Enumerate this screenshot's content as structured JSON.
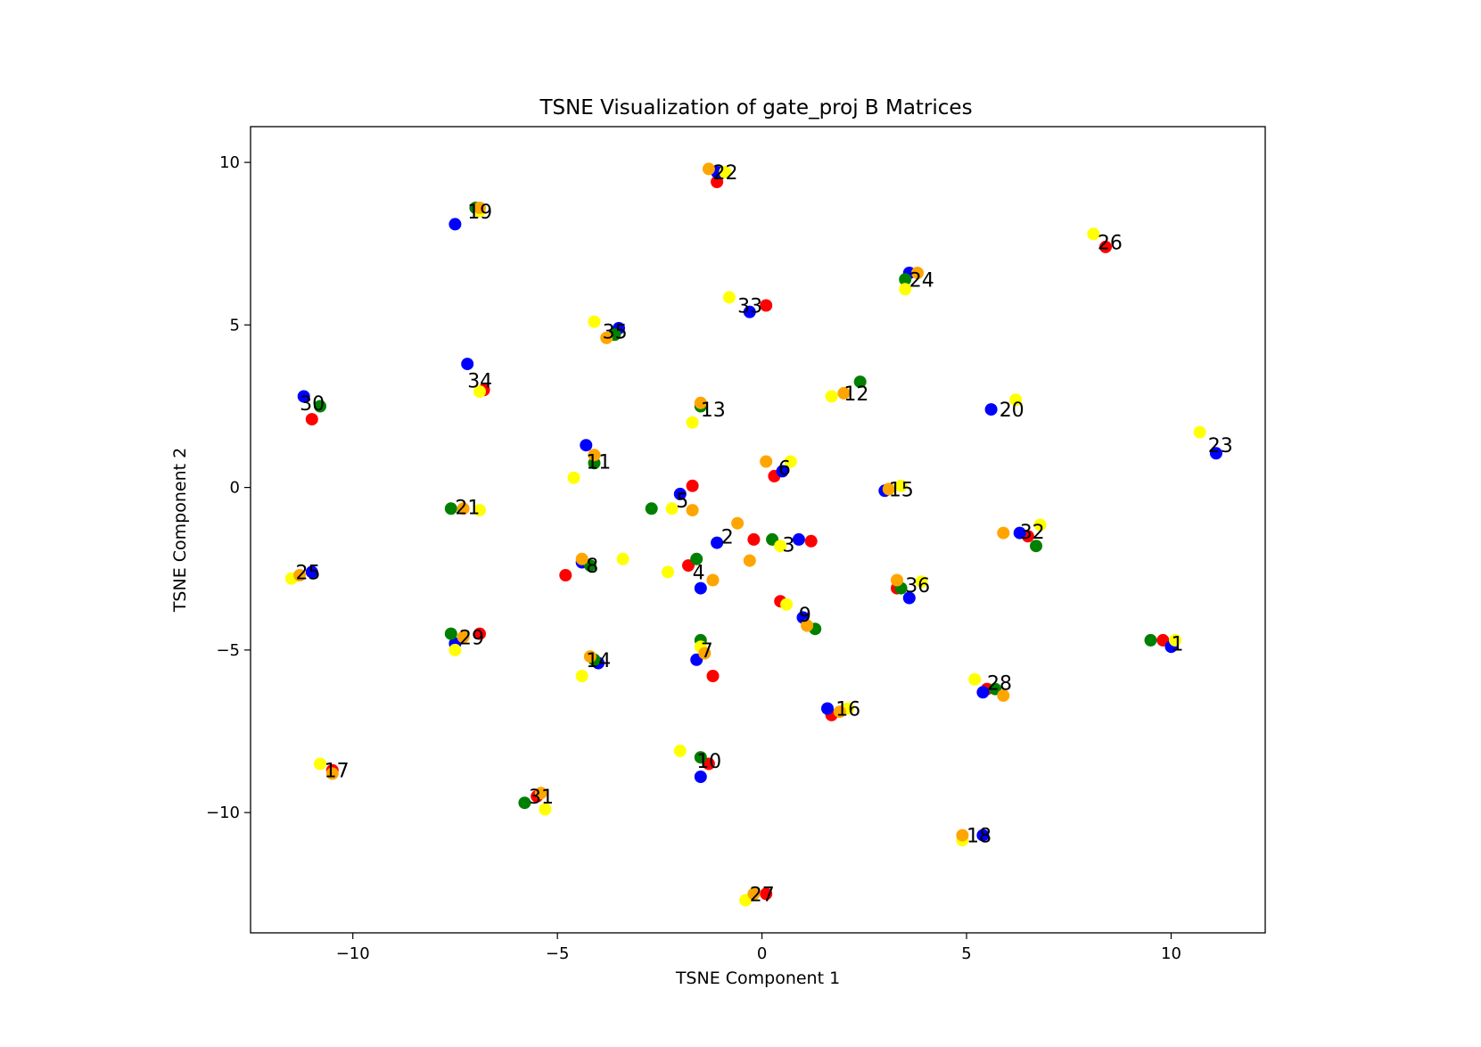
{
  "chart_data": {
    "type": "scatter",
    "title": "TSNE Visualization of gate_proj B Matrices",
    "xlabel": "TSNE Component 1",
    "ylabel": "TSNE Component 2",
    "xlim": [
      -12.5,
      12.3
    ],
    "ylim": [
      -13.7,
      11.1
    ],
    "xticks": [
      -10,
      -5,
      0,
      5,
      10
    ],
    "yticks": [
      10,
      5,
      0,
      -5,
      -10
    ],
    "grid": false,
    "legend": "none",
    "colors": {
      "red": "#ff0000",
      "blue": "#0000ff",
      "green": "#008000",
      "yellow": "#ffff00",
      "orange": "#ffa500"
    },
    "series": [
      {
        "color": "red",
        "points": [
          [
            -1.1,
            9.4
          ],
          [
            -6.8,
            3.0
          ],
          [
            -11.0,
            2.1
          ],
          [
            8.4,
            7.4
          ],
          [
            0.1,
            5.6
          ],
          [
            -0.2,
            -1.6
          ],
          [
            -1.8,
            -2.4
          ],
          [
            -4.8,
            -2.7
          ],
          [
            -1.7,
            0.05
          ],
          [
            1.2,
            -1.65
          ],
          [
            0.3,
            0.35
          ],
          [
            6.5,
            -1.5
          ],
          [
            9.8,
            -4.7
          ],
          [
            -6.9,
            -4.5
          ],
          [
            -1.2,
            -5.8
          ],
          [
            0.45,
            -3.5
          ],
          [
            -1.3,
            -8.5
          ],
          [
            1.7,
            -7.0
          ],
          [
            -10.5,
            -8.7
          ],
          [
            -5.5,
            -9.5
          ],
          [
            0.1,
            -12.5
          ],
          [
            3.3,
            -3.1
          ],
          [
            5.5,
            -6.2
          ]
        ]
      },
      {
        "color": "blue",
        "points": [
          [
            -7.5,
            8.1
          ],
          [
            -1.1,
            9.7
          ],
          [
            -7.2,
            3.8
          ],
          [
            -11.2,
            2.8
          ],
          [
            3.6,
            6.6
          ],
          [
            -0.3,
            5.4
          ],
          [
            -3.5,
            4.9
          ],
          [
            -4.3,
            1.3
          ],
          [
            -2.0,
            -0.2
          ],
          [
            -1.5,
            -3.1
          ],
          [
            -1.6,
            -5.3
          ],
          [
            0.9,
            -1.6
          ],
          [
            -1.1,
            -1.7
          ],
          [
            6.3,
            -1.4
          ],
          [
            -4.4,
            -2.3
          ],
          [
            -11.0,
            -2.6
          ],
          [
            -7.5,
            -4.8
          ],
          [
            1.0,
            -4.0
          ],
          [
            3.6,
            -3.4
          ],
          [
            5.4,
            -6.3
          ],
          [
            5.4,
            -10.7
          ],
          [
            -1.5,
            -8.9
          ],
          [
            -4.0,
            -5.4
          ],
          [
            11.1,
            1.05
          ],
          [
            10.0,
            -4.9
          ],
          [
            5.6,
            2.4
          ],
          [
            0.5,
            0.5
          ],
          [
            3.0,
            -0.1
          ],
          [
            1.6,
            -6.8
          ]
        ]
      },
      {
        "color": "green",
        "points": [
          [
            -7.0,
            8.6
          ],
          [
            3.5,
            6.4
          ],
          [
            -3.6,
            4.7
          ],
          [
            -10.8,
            2.5
          ],
          [
            -1.5,
            2.5
          ],
          [
            2.4,
            3.25
          ],
          [
            -4.1,
            0.75
          ],
          [
            -7.6,
            -0.65
          ],
          [
            -2.7,
            -0.65
          ],
          [
            0.25,
            -1.6
          ],
          [
            -1.6,
            -2.2
          ],
          [
            -4.2,
            -2.4
          ],
          [
            6.7,
            -1.8
          ],
          [
            -7.6,
            -4.5
          ],
          [
            -1.5,
            -4.7
          ],
          [
            1.3,
            -4.35
          ],
          [
            3.4,
            -3.1
          ],
          [
            5.7,
            -6.2
          ],
          [
            9.5,
            -4.7
          ],
          [
            -1.5,
            -8.3
          ],
          [
            -5.8,
            -9.7
          ],
          [
            -4.1,
            -5.3
          ]
        ]
      },
      {
        "color": "yellow",
        "points": [
          [
            -6.9,
            8.5
          ],
          [
            -0.9,
            9.7
          ],
          [
            -0.8,
            5.85
          ],
          [
            -4.1,
            5.1
          ],
          [
            3.5,
            6.1
          ],
          [
            -6.9,
            2.95
          ],
          [
            -1.7,
            2.0
          ],
          [
            1.7,
            2.8
          ],
          [
            6.2,
            2.7
          ],
          [
            10.7,
            1.7
          ],
          [
            0.7,
            0.8
          ],
          [
            -4.6,
            0.3
          ],
          [
            -2.2,
            -0.65
          ],
          [
            -6.9,
            -0.7
          ],
          [
            3.4,
            0.05
          ],
          [
            6.8,
            -1.15
          ],
          [
            -3.4,
            -2.2
          ],
          [
            -2.3,
            -2.6
          ],
          [
            0.45,
            -1.8
          ],
          [
            -11.5,
            -2.8
          ],
          [
            3.9,
            -2.9
          ],
          [
            0.6,
            -3.6
          ],
          [
            -7.5,
            -5.0
          ],
          [
            -4.4,
            -5.8
          ],
          [
            -1.5,
            -4.9
          ],
          [
            5.2,
            -5.9
          ],
          [
            2.1,
            -6.8
          ],
          [
            -10.8,
            -8.5
          ],
          [
            -2.0,
            -8.1
          ],
          [
            -5.3,
            -9.9
          ],
          [
            4.9,
            -10.85
          ],
          [
            -0.4,
            -12.7
          ],
          [
            8.1,
            7.8
          ],
          [
            10.1,
            -4.7
          ]
        ]
      },
      {
        "color": "orange",
        "points": [
          [
            -1.3,
            9.8
          ],
          [
            3.8,
            6.6
          ],
          [
            -3.8,
            4.6
          ],
          [
            -1.5,
            2.6
          ],
          [
            0.1,
            0.8
          ],
          [
            -4.1,
            1.0
          ],
          [
            -1.7,
            -0.7
          ],
          [
            -0.6,
            -1.1
          ],
          [
            -0.3,
            -2.25
          ],
          [
            -1.2,
            -2.85
          ],
          [
            -4.4,
            -2.2
          ],
          [
            -7.3,
            -0.65
          ],
          [
            3.3,
            -2.85
          ],
          [
            5.9,
            -1.4
          ],
          [
            -7.3,
            -4.6
          ],
          [
            -1.4,
            -5.1
          ],
          [
            1.1,
            -4.25
          ],
          [
            5.9,
            -6.4
          ],
          [
            -10.5,
            -8.8
          ],
          [
            -5.4,
            -9.4
          ],
          [
            -4.2,
            -5.2
          ],
          [
            4.9,
            -10.7
          ],
          [
            -0.2,
            -12.5
          ],
          [
            2.0,
            2.9
          ],
          [
            3.1,
            -0.05
          ],
          [
            1.9,
            -6.9
          ],
          [
            -11.3,
            -2.7
          ],
          [
            -6.9,
            8.6
          ]
        ]
      }
    ],
    "annotations": [
      {
        "text": "1",
        "x": 10.0,
        "y": -4.8
      },
      {
        "text": "2",
        "x": -1.0,
        "y": -1.5
      },
      {
        "text": "3",
        "x": 0.5,
        "y": -1.75
      },
      {
        "text": "4",
        "x": -1.7,
        "y": -2.6
      },
      {
        "text": "5",
        "x": -2.1,
        "y": -0.4
      },
      {
        "text": "6",
        "x": 0.4,
        "y": 0.6
      },
      {
        "text": "7",
        "x": -1.5,
        "y": -5.0
      },
      {
        "text": "8",
        "x": -4.3,
        "y": -2.4
      },
      {
        "text": "9",
        "x": 0.9,
        "y": -3.9
      },
      {
        "text": "10",
        "x": -1.6,
        "y": -8.4
      },
      {
        "text": "11",
        "x": -4.3,
        "y": 0.8
      },
      {
        "text": "12",
        "x": 2.0,
        "y": 2.9
      },
      {
        "text": "13",
        "x": -1.5,
        "y": 2.4
      },
      {
        "text": "14",
        "x": -4.3,
        "y": -5.3
      },
      {
        "text": "15",
        "x": 3.1,
        "y": -0.05
      },
      {
        "text": "16",
        "x": 1.8,
        "y": -6.8
      },
      {
        "text": "17",
        "x": -10.7,
        "y": -8.7
      },
      {
        "text": "18",
        "x": 5.0,
        "y": -10.7
      },
      {
        "text": "19",
        "x": -7.2,
        "y": 8.5
      },
      {
        "text": "20",
        "x": 5.8,
        "y": 2.4
      },
      {
        "text": "21",
        "x": -7.5,
        "y": -0.6
      },
      {
        "text": "22",
        "x": -1.2,
        "y": 9.7
      },
      {
        "text": "23",
        "x": 10.9,
        "y": 1.3
      },
      {
        "text": "24",
        "x": 3.6,
        "y": 6.4
      },
      {
        "text": "25",
        "x": -11.4,
        "y": -2.6
      },
      {
        "text": "26",
        "x": 8.2,
        "y": 7.55
      },
      {
        "text": "27",
        "x": -0.3,
        "y": -12.5
      },
      {
        "text": "28",
        "x": 5.5,
        "y": -6.0
      },
      {
        "text": "29",
        "x": -7.4,
        "y": -4.6
      },
      {
        "text": "30",
        "x": -11.3,
        "y": 2.6
      },
      {
        "text": "31",
        "x": -5.7,
        "y": -9.5
      },
      {
        "text": "32",
        "x": 6.3,
        "y": -1.35
      },
      {
        "text": "33",
        "x": -0.6,
        "y": 5.6
      },
      {
        "text": "34",
        "x": -7.2,
        "y": 3.3
      },
      {
        "text": "35",
        "x": -3.9,
        "y": 4.8
      },
      {
        "text": "36",
        "x": 3.5,
        "y": -3.0
      }
    ]
  }
}
